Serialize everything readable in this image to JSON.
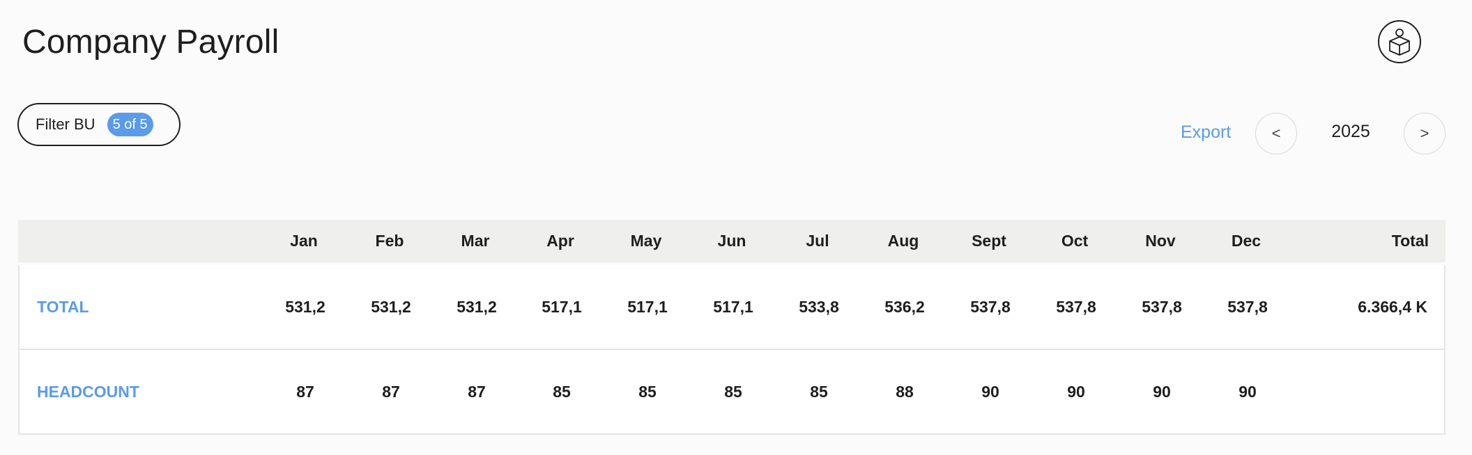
{
  "header": {
    "title": "Company Payroll",
    "user_icon": "user-box-icon"
  },
  "toolbar": {
    "filter_label": "Filter BU",
    "filter_badge": "5 of 5",
    "export_label": "Export",
    "prev_label": "<",
    "next_label": ">",
    "year": "2025"
  },
  "colors": {
    "accent": "#5b9be8",
    "header_bg": "#efefee",
    "border": "#e4e4e4",
    "text": "#1e1e1e"
  },
  "table": {
    "columns": [
      "Jan",
      "Feb",
      "Mar",
      "Apr",
      "May",
      "Jun",
      "Jul",
      "Aug",
      "Sept",
      "Oct",
      "Nov",
      "Dec"
    ],
    "total_header": "Total",
    "rows": [
      {
        "label": "TOTAL",
        "values": [
          "531,2",
          "531,2",
          "531,2",
          "517,1",
          "517,1",
          "517,1",
          "533,8",
          "536,2",
          "537,8",
          "537,8",
          "537,8",
          "537,8"
        ],
        "total": "6.366,4 K"
      },
      {
        "label": "HEADCOUNT",
        "values": [
          "87",
          "87",
          "87",
          "85",
          "85",
          "85",
          "85",
          "88",
          "90",
          "90",
          "90",
          "90"
        ],
        "total": ""
      }
    ]
  }
}
